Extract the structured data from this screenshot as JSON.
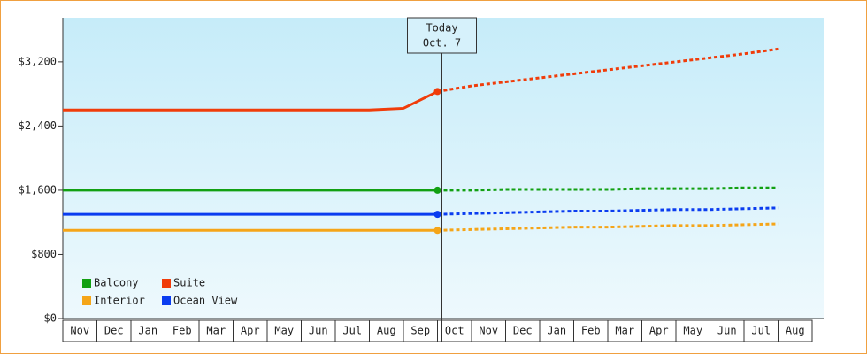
{
  "chart_data": {
    "type": "line",
    "annotation": [
      "Today",
      "Oct. 7"
    ],
    "categories": [
      "Nov",
      "Dec",
      "Jan",
      "Feb",
      "Mar",
      "Apr",
      "May",
      "Jun",
      "Jul",
      "Aug",
      "Sep",
      "Oct",
      "Nov",
      "Dec",
      "Jan",
      "Feb",
      "Mar",
      "Apr",
      "May",
      "Jun",
      "Jul",
      "Aug"
    ],
    "ylim": [
      0,
      3750
    ],
    "yticks": [
      {
        "value": 0,
        "label": "$0"
      },
      {
        "value": 800,
        "label": "$800"
      },
      {
        "value": 1600,
        "label": "$1,600"
      },
      {
        "value": 2400,
        "label": "$2,400"
      },
      {
        "value": 3200,
        "label": "$3,200"
      }
    ],
    "legend": "bottom-left",
    "series": [
      {
        "name": "Balcony",
        "color": "#12a012",
        "values": [
          1600,
          1600,
          1600,
          1600,
          1600,
          1600,
          1600,
          1600,
          1600,
          1600,
          1600,
          1600,
          null,
          null,
          null,
          null,
          null,
          null,
          null,
          null,
          null,
          null
        ],
        "forecast": [
          null,
          null,
          null,
          null,
          null,
          null,
          null,
          null,
          null,
          null,
          null,
          1600,
          1600,
          1610,
          1610,
          1610,
          1610,
          1620,
          1620,
          1620,
          1630,
          1630
        ]
      },
      {
        "name": "Suite",
        "color": "#f03c0a",
        "values": [
          2600,
          2600,
          2600,
          2600,
          2600,
          2600,
          2600,
          2600,
          2600,
          2600,
          2620,
          2830,
          null,
          null,
          null,
          null,
          null,
          null,
          null,
          null,
          null,
          null
        ],
        "forecast": [
          null,
          null,
          null,
          null,
          null,
          null,
          null,
          null,
          null,
          null,
          null,
          2830,
          2900,
          2950,
          3000,
          3050,
          3100,
          3150,
          3200,
          3250,
          3300,
          3360
        ]
      },
      {
        "name": "Interior",
        "color": "#f5a518",
        "values": [
          1100,
          1100,
          1100,
          1100,
          1100,
          1100,
          1100,
          1100,
          1100,
          1100,
          1100,
          1100,
          null,
          null,
          null,
          null,
          null,
          null,
          null,
          null,
          null,
          null
        ],
        "forecast": [
          null,
          null,
          null,
          null,
          null,
          null,
          null,
          null,
          null,
          null,
          null,
          1100,
          1110,
          1120,
          1130,
          1140,
          1140,
          1150,
          1160,
          1160,
          1170,
          1180
        ]
      },
      {
        "name": "Ocean View",
        "color": "#0a3cf0",
        "values": [
          1300,
          1300,
          1300,
          1300,
          1300,
          1300,
          1300,
          1300,
          1300,
          1300,
          1300,
          1300,
          null,
          null,
          null,
          null,
          null,
          null,
          null,
          null,
          null,
          null
        ],
        "forecast": [
          null,
          null,
          null,
          null,
          null,
          null,
          null,
          null,
          null,
          null,
          null,
          1300,
          1310,
          1320,
          1330,
          1340,
          1340,
          1350,
          1360,
          1360,
          1370,
          1380
        ]
      }
    ]
  }
}
